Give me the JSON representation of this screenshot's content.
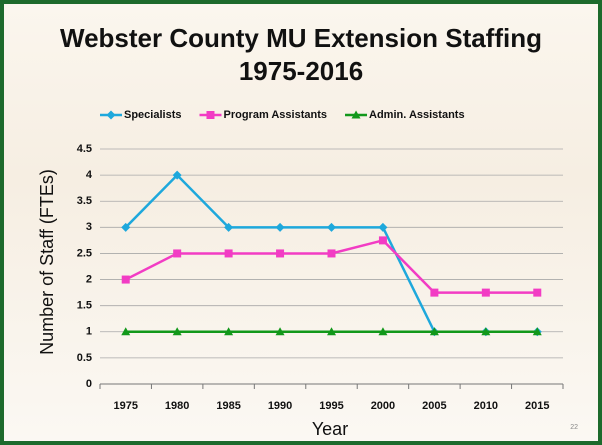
{
  "chart_data": {
    "type": "line",
    "title": "Webster County MU Extension Staffing 1975-2016",
    "x_label": "Year",
    "y_label": "Number of Staff (FTEs)",
    "categories": [
      "1975",
      "1980",
      "1985",
      "1990",
      "1995",
      "2000",
      "2005",
      "2010",
      "2015"
    ],
    "series": [
      {
        "name": "Specialists",
        "color": "#1ea8dc",
        "marker": "diamond",
        "values": [
          3,
          4,
          3,
          3,
          3,
          3,
          1,
          1,
          1
        ]
      },
      {
        "name": "Program Assistants",
        "color": "#f23cc4",
        "marker": "square",
        "values": [
          2,
          2.5,
          2.5,
          2.5,
          2.5,
          2.75,
          1.75,
          1.75,
          1.75
        ]
      },
      {
        "name": "Admin. Assistants",
        "color": "#12981a",
        "marker": "triangle",
        "values": [
          1,
          1,
          1,
          1,
          1,
          1,
          1,
          1,
          1
        ]
      }
    ],
    "ylim": [
      0,
      4.5
    ],
    "yticks": [
      0,
      0.5,
      1,
      1.5,
      2,
      2.5,
      3,
      3.5,
      4,
      4.5
    ],
    "grid": true,
    "legend": "top"
  },
  "slide_number": "22"
}
